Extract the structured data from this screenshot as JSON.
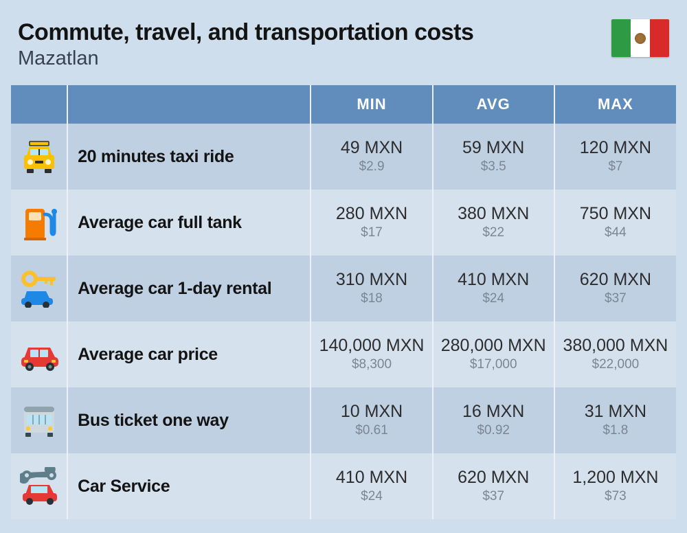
{
  "page": {
    "background_color": "#cfdeed",
    "title_color": "#131313",
    "subtitle_color": "#374151",
    "title": "Commute, travel, and transportation costs",
    "subtitle": "Mazatlan"
  },
  "flag": {
    "left": "#2e9b44",
    "center": "#ffffff",
    "right": "#d82a2a"
  },
  "table": {
    "header_bg": "#608dbb",
    "header_text": "#ffffff",
    "row_even_bg": "#c0d0e3",
    "row_odd_bg": "#d6e1ee",
    "border_color": "#ebf1f7",
    "label_color": "#131313",
    "price_local_color": "#2d2d2d",
    "price_usd_color": "#7b8693",
    "headers": [
      "",
      "",
      "MIN",
      "AVG",
      "MAX"
    ],
    "rows": [
      {
        "icon": "taxi",
        "label": "20 minutes taxi ride",
        "min": {
          "local": "49 MXN",
          "usd": "$2.9"
        },
        "avg": {
          "local": "59 MXN",
          "usd": "$3.5"
        },
        "max": {
          "local": "120 MXN",
          "usd": "$7"
        }
      },
      {
        "icon": "fuel-pump",
        "label": "Average car full tank",
        "min": {
          "local": "280 MXN",
          "usd": "$17"
        },
        "avg": {
          "local": "380 MXN",
          "usd": "$22"
        },
        "max": {
          "local": "750 MXN",
          "usd": "$44"
        }
      },
      {
        "icon": "car-key",
        "label": "Average car 1-day rental",
        "min": {
          "local": "310 MXN",
          "usd": "$18"
        },
        "avg": {
          "local": "410 MXN",
          "usd": "$24"
        },
        "max": {
          "local": "620 MXN",
          "usd": "$37"
        }
      },
      {
        "icon": "red-car",
        "label": "Average car price",
        "min": {
          "local": "140,000 MXN",
          "usd": "$8,300"
        },
        "avg": {
          "local": "280,000 MXN",
          "usd": "$17,000"
        },
        "max": {
          "local": "380,000 MXN",
          "usd": "$22,000"
        }
      },
      {
        "icon": "bus",
        "label": "Bus ticket one way",
        "min": {
          "local": "10 MXN",
          "usd": "$0.61"
        },
        "avg": {
          "local": "16 MXN",
          "usd": "$0.92"
        },
        "max": {
          "local": "31 MXN",
          "usd": "$1.8"
        }
      },
      {
        "icon": "wrench-car",
        "label": "Car Service",
        "min": {
          "local": "410 MXN",
          "usd": "$24"
        },
        "avg": {
          "local": "620 MXN",
          "usd": "$37"
        },
        "max": {
          "local": "1,200 MXN",
          "usd": "$73"
        }
      }
    ]
  },
  "icons": {
    "taxi": {
      "bg": "#f9c101",
      "accent": "#2d2d2d"
    },
    "fuel-pump": {
      "bg": "#f57c00",
      "accent": "#1e88e5"
    },
    "car-key": {
      "bg": "#1e88e5",
      "accent": "#fbc02d"
    },
    "red-car": {
      "bg": "#e53935",
      "accent": "#1e88e5"
    },
    "bus": {
      "bg": "#90a4ae",
      "accent": "#5c6b73"
    },
    "wrench-car": {
      "bg": "#e53935",
      "accent": "#607d8b"
    }
  }
}
